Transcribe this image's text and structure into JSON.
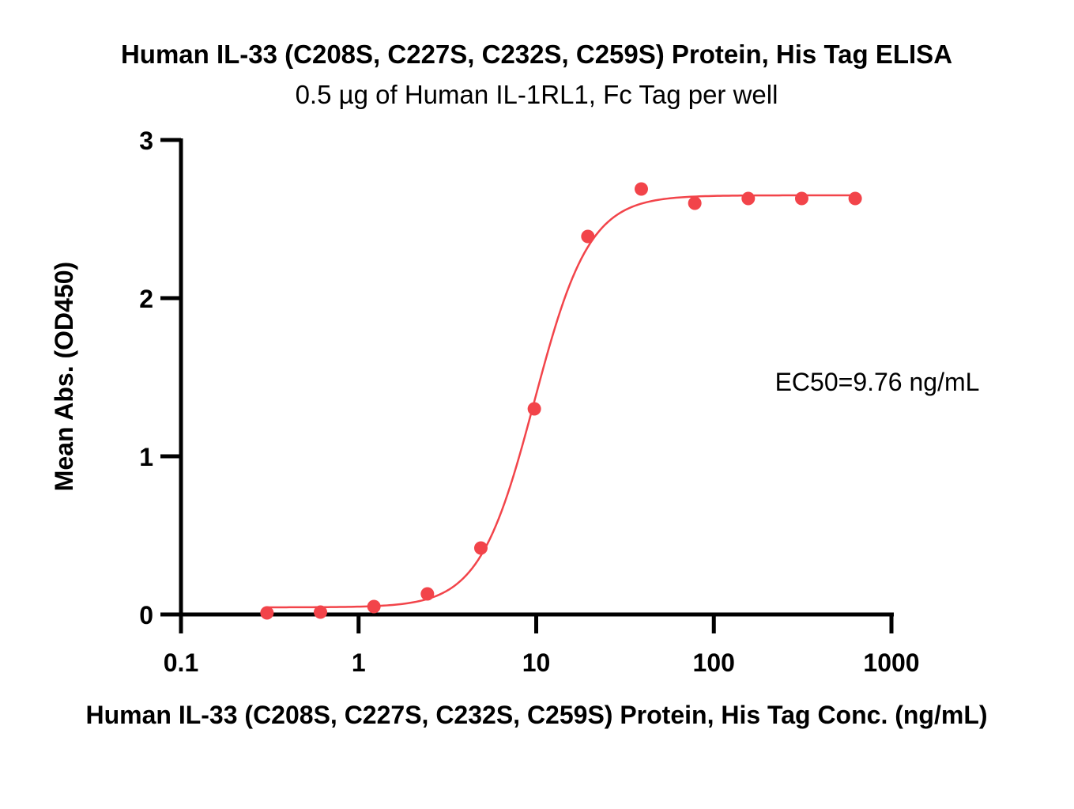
{
  "chart_data": {
    "type": "scatter",
    "title": "Human IL-33 (C208S, C227S, C232S, C259S) Protein, His Tag ELISA",
    "subtitle": "0.5 µg of Human IL-1RL1, Fc Tag per well",
    "xlabel": "Human IL-33 (C208S, C227S, C232S, C259S) Protein, His Tag Conc. (ng/mL)",
    "ylabel": "Mean Abs. (OD450)",
    "x_scale": "log",
    "xlim": [
      0.1,
      1000
    ],
    "ylim": [
      0,
      3
    ],
    "x_ticks": [
      0.1,
      1,
      10,
      100,
      1000
    ],
    "x_tick_labels": [
      "0.1",
      "1",
      "10",
      "100",
      "1000"
    ],
    "y_ticks": [
      0,
      1,
      2,
      3
    ],
    "y_tick_labels": [
      "0",
      "1",
      "2",
      "3"
    ],
    "grid": false,
    "color": "#f2444a",
    "annotation": "EC50=9.76 ng/mL",
    "series": [
      {
        "x": [
          0.305,
          0.61,
          1.22,
          2.44,
          4.88,
          9.76,
          19.53,
          39.06,
          78.13,
          156.25,
          312.5,
          625
        ],
        "y": [
          0.01,
          0.015,
          0.05,
          0.13,
          0.42,
          1.3,
          2.39,
          2.69,
          2.6,
          2.63,
          2.63,
          2.63
        ],
        "fit": {
          "bottom": 0.045,
          "top": 2.65,
          "ec50": 9.76,
          "hill": 2.8
        }
      }
    ]
  }
}
